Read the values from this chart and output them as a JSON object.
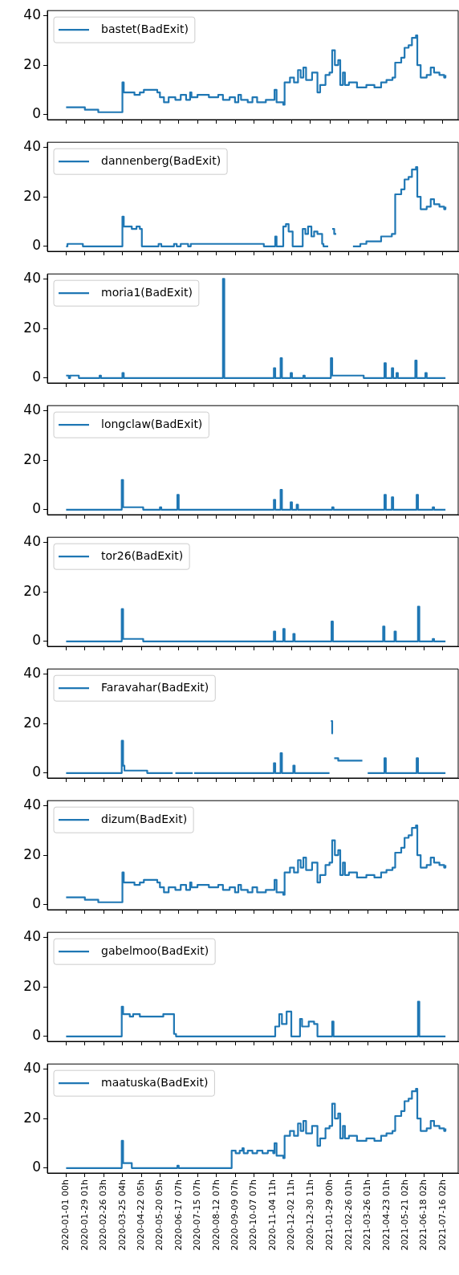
{
  "chart_data": [
    {
      "type": "step",
      "x": [
        "2020-01-01",
        "2020-01-29",
        "2020-02-18",
        "2020-03-25",
        "2020-03-27",
        "2020-04-12",
        "2020-04-20",
        "2020-04-26",
        "2020-05-16",
        "2020-05-20",
        "2020-05-26",
        "2020-06-02",
        "2020-06-12",
        "2020-06-20",
        "2020-06-28",
        "2020-07-04",
        "2020-07-06",
        "2020-07-15",
        "2020-08-01",
        "2020-08-15",
        "2020-08-22",
        "2020-09-01",
        "2020-09-09",
        "2020-09-14",
        "2020-09-18",
        "2020-09-28",
        "2020-10-05",
        "2020-10-12",
        "2020-10-25",
        "2020-11-07",
        "2020-11-10",
        "2020-11-20",
        "2020-11-22",
        "2020-11-30",
        "2020-12-06",
        "2020-12-12",
        "2020-12-16",
        "2020-12-20",
        "2020-12-24",
        "2021-01-02",
        "2021-01-10",
        "2021-01-14",
        "2021-01-22",
        "2021-01-28",
        "2021-02-01",
        "2021-02-05",
        "2021-02-10",
        "2021-02-13",
        "2021-02-17",
        "2021-02-20",
        "2021-02-26",
        "2021-03-10",
        "2021-03-24",
        "2021-04-05",
        "2021-04-15",
        "2021-04-23",
        "2021-05-02",
        "2021-05-06",
        "2021-05-15",
        "2021-05-20",
        "2021-05-26",
        "2021-05-31",
        "2021-06-06",
        "2021-06-08",
        "2021-06-13",
        "2021-06-22",
        "2021-06-28",
        "2021-07-03",
        "2021-07-11",
        "2021-07-18",
        "2021-07-20"
      ],
      "series": [
        {
          "name": "bastet(BadExit)",
          "color": "#1f77b4",
          "values": [
            3,
            2,
            1,
            13,
            9,
            8,
            9,
            10,
            9,
            7,
            5,
            7,
            6,
            8,
            6,
            9,
            7,
            8,
            7,
            8,
            6,
            7,
            5,
            8,
            6,
            5,
            7,
            5,
            6,
            10,
            5,
            4,
            13,
            15,
            13,
            18,
            15,
            19,
            14,
            17,
            9,
            12,
            16,
            17,
            26,
            20,
            22,
            12,
            17,
            12,
            13,
            11,
            12,
            11,
            13,
            14,
            15,
            21,
            23,
            27,
            28,
            31,
            32,
            20,
            15,
            16,
            19,
            17,
            16,
            15,
            16
          ]
        }
      ],
      "xlim": [
        "2019-12-04",
        "2021-08-08"
      ],
      "xticks": [
        {
          "value": "2020-01-01T00:00",
          "label": null
        },
        {
          "value": "2020-01-29T01:00",
          "label": null
        },
        {
          "value": "2020-02-26T03:00",
          "label": null
        },
        {
          "value": "2020-03-25T04:00",
          "label": null
        },
        {
          "value": "2020-04-22T05:00",
          "label": null
        },
        {
          "value": "2020-05-20T05:00",
          "label": null
        },
        {
          "value": "2020-06-17T07:00",
          "label": null
        },
        {
          "value": "2020-07-15T07:00",
          "label": null
        },
        {
          "value": "2020-08-12T07:00",
          "label": null
        },
        {
          "value": "2020-09-09T07:00",
          "label": null
        },
        {
          "value": "2020-10-07T07:00",
          "label": null
        },
        {
          "value": "2020-11-04T11:00",
          "label": null
        },
        {
          "value": "2020-12-02T11:00",
          "label": null
        },
        {
          "value": "2020-12-30T11:00",
          "label": null
        },
        {
          "value": "2021-01-29T00:00",
          "label": null
        },
        {
          "value": "2021-02-26T01:00",
          "label": null
        },
        {
          "value": "2021-03-26T01:00",
          "label": null
        },
        {
          "value": "2021-04-23T01:00",
          "label": null
        },
        {
          "value": "2021-05-21T02:00",
          "label": null
        },
        {
          "value": "2021-06-18T02:00",
          "label": null
        },
        {
          "value": "2021-07-16T02:00",
          "label": null
        }
      ],
      "ylim": [
        -2,
        42
      ],
      "yticks": [
        0,
        20,
        40
      ],
      "legend": "top left",
      "tick_labels": "y"
    },
    {
      "type": "step",
      "x": [
        "2020-01-01",
        "2020-01-03",
        "2020-01-26",
        "2020-03-25",
        "2020-03-27",
        "2020-04-08",
        "2020-04-15",
        "2020-04-20",
        "2020-04-23",
        "2020-05-18",
        "2020-05-22",
        "2020-06-10",
        "2020-06-14",
        "2020-06-20",
        "2020-07-01",
        "2020-07-05",
        "2020-10-22",
        "2020-11-08",
        "2020-11-10",
        "2020-11-20",
        "2020-11-24",
        "2020-11-28",
        "2020-12-04",
        "2020-12-19",
        "2020-12-23",
        "2020-12-27",
        "2021-01-01",
        "2021-01-05",
        "2021-01-10",
        "2021-01-17",
        "2021-01-19",
        "2021-01-26",
        "2021-01-27",
        "2021-02-01",
        "2021-02-04",
        "2021-02-07",
        "2021-02-08",
        "2021-03-04",
        "2021-03-15",
        "2021-03-24",
        "2021-04-15",
        "2021-05-01",
        "2021-05-06",
        "2021-05-15",
        "2021-05-20",
        "2021-05-26",
        "2021-05-31",
        "2021-06-06",
        "2021-06-08",
        "2021-06-13",
        "2021-06-22",
        "2021-06-28",
        "2021-07-03",
        "2021-07-11",
        "2021-07-18",
        "2021-07-20"
      ],
      "series": [
        {
          "name": "dannenberg(BadExit)",
          "color": "#1f77b4",
          "values": [
            0,
            1,
            0,
            12,
            8,
            7,
            8,
            7,
            0,
            1,
            0,
            1,
            0,
            1,
            0,
            1,
            0,
            4,
            0,
            8,
            9,
            6,
            0,
            7,
            5,
            8,
            4,
            6,
            5,
            1,
            0,
            0,
            null,
            7,
            5,
            5,
            null,
            0,
            1,
            2,
            4,
            5,
            21,
            23,
            27,
            28,
            31,
            32,
            20,
            15,
            16,
            19,
            17,
            16,
            15,
            16
          ]
        }
      ],
      "xlim": [
        "2019-12-04",
        "2021-08-08"
      ],
      "xticks": [
        {
          "value": "2020-01-01T00:00",
          "label": null
        },
        {
          "value": "2020-01-29T01:00",
          "label": null
        },
        {
          "value": "2020-02-26T03:00",
          "label": null
        },
        {
          "value": "2020-03-25T04:00",
          "label": null
        },
        {
          "value": "2020-04-22T05:00",
          "label": null
        },
        {
          "value": "2020-05-20T05:00",
          "label": null
        },
        {
          "value": "2020-06-17T07:00",
          "label": null
        },
        {
          "value": "2020-07-15T07:00",
          "label": null
        },
        {
          "value": "2020-08-12T07:00",
          "label": null
        },
        {
          "value": "2020-09-09T07:00",
          "label": null
        },
        {
          "value": "2020-10-07T07:00",
          "label": null
        },
        {
          "value": "2020-11-04T11:00",
          "label": null
        },
        {
          "value": "2020-12-02T11:00",
          "label": null
        },
        {
          "value": "2020-12-30T11:00",
          "label": null
        },
        {
          "value": "2021-01-29T00:00",
          "label": null
        },
        {
          "value": "2021-02-26T01:00",
          "label": null
        },
        {
          "value": "2021-03-26T01:00",
          "label": null
        },
        {
          "value": "2021-04-23T01:00",
          "label": null
        },
        {
          "value": "2021-05-21T02:00",
          "label": null
        },
        {
          "value": "2021-06-18T02:00",
          "label": null
        },
        {
          "value": "2021-07-16T02:00",
          "label": null
        }
      ],
      "ylim": [
        -2,
        42
      ],
      "yticks": [
        0,
        20,
        40
      ],
      "legend": "top left",
      "tick_labels": "y"
    },
    {
      "type": "step",
      "x": [
        "2020-01-01",
        "2020-01-05",
        "2020-01-07",
        "2020-01-20",
        "2020-02-20",
        "2020-02-22",
        "2020-03-25",
        "2020-03-27",
        "2020-08-22",
        "2020-08-24",
        "2020-11-06",
        "2020-11-08",
        "2020-11-16",
        "2020-11-18",
        "2020-12-01",
        "2020-12-03",
        "2020-12-20",
        "2020-12-22",
        "2021-01-30",
        "2021-02-01",
        "2021-02-04",
        "2021-03-20",
        "2021-04-20",
        "2021-04-22",
        "2021-05-01",
        "2021-05-03",
        "2021-05-08",
        "2021-05-10",
        "2021-06-05",
        "2021-06-07",
        "2021-06-20",
        "2021-06-22",
        "2021-07-20"
      ],
      "series": [
        {
          "name": "moria1(BadExit)",
          "color": "#1f77b4",
          "values": [
            1,
            0,
            1,
            0,
            1,
            0,
            2,
            0,
            40,
            0,
            4,
            0,
            8,
            0,
            2,
            0,
            1,
            0,
            8,
            1,
            1,
            0,
            6,
            0,
            4,
            0,
            2,
            0,
            7,
            0,
            2,
            0,
            0
          ]
        }
      ],
      "xlim": [
        "2019-12-04",
        "2021-08-08"
      ],
      "xticks": [
        {
          "value": "2020-01-01T00:00",
          "label": null
        },
        {
          "value": "2020-01-29T01:00",
          "label": null
        },
        {
          "value": "2020-02-26T03:00",
          "label": null
        },
        {
          "value": "2020-03-25T04:00",
          "label": null
        },
        {
          "value": "2020-04-22T05:00",
          "label": null
        },
        {
          "value": "2020-05-20T05:00",
          "label": null
        },
        {
          "value": "2020-06-17T07:00",
          "label": null
        },
        {
          "value": "2020-07-15T07:00",
          "label": null
        },
        {
          "value": "2020-08-12T07:00",
          "label": null
        },
        {
          "value": "2020-09-09T07:00",
          "label": null
        },
        {
          "value": "2020-10-07T07:00",
          "label": null
        },
        {
          "value": "2020-11-04T11:00",
          "label": null
        },
        {
          "value": "2020-12-02T11:00",
          "label": null
        },
        {
          "value": "2020-12-30T11:00",
          "label": null
        },
        {
          "value": "2021-01-29T00:00",
          "label": null
        },
        {
          "value": "2021-02-26T01:00",
          "label": null
        },
        {
          "value": "2021-03-26T01:00",
          "label": null
        },
        {
          "value": "2021-04-23T01:00",
          "label": null
        },
        {
          "value": "2021-05-21T02:00",
          "label": null
        },
        {
          "value": "2021-06-18T02:00",
          "label": null
        },
        {
          "value": "2021-07-16T02:00",
          "label": null
        }
      ],
      "ylim": [
        -2,
        42
      ],
      "yticks": [
        0,
        20,
        40
      ],
      "legend": "top left",
      "tick_labels": "y"
    },
    {
      "type": "step",
      "x": [
        "2020-01-01",
        "2020-03-24",
        "2020-03-26",
        "2020-04-25",
        "2020-05-20",
        "2020-05-22",
        "2020-06-15",
        "2020-06-17",
        "2020-11-06",
        "2020-11-08",
        "2020-11-16",
        "2020-11-18",
        "2020-12-01",
        "2020-12-03",
        "2020-12-10",
        "2020-12-12",
        "2021-02-01",
        "2021-02-03",
        "2021-04-20",
        "2021-04-22",
        "2021-05-01",
        "2021-05-03",
        "2021-06-07",
        "2021-06-09",
        "2021-07-01",
        "2021-07-03",
        "2021-07-20"
      ],
      "series": [
        {
          "name": "longclaw(BadExit)",
          "color": "#1f77b4",
          "values": [
            0,
            12,
            1,
            0,
            1,
            0,
            6,
            0,
            4,
            0,
            8,
            0,
            3,
            0,
            2,
            0,
            1,
            0,
            6,
            0,
            5,
            0,
            6,
            0,
            1,
            0,
            0
          ]
        }
      ],
      "xlim": [
        "2019-12-04",
        "2021-08-08"
      ],
      "xticks": [
        {
          "value": "2020-01-01T00:00",
          "label": null
        },
        {
          "value": "2020-01-29T01:00",
          "label": null
        },
        {
          "value": "2020-02-26T03:00",
          "label": null
        },
        {
          "value": "2020-03-25T04:00",
          "label": null
        },
        {
          "value": "2020-04-22T05:00",
          "label": null
        },
        {
          "value": "2020-05-20T05:00",
          "label": null
        },
        {
          "value": "2020-06-17T07:00",
          "label": null
        },
        {
          "value": "2020-07-15T07:00",
          "label": null
        },
        {
          "value": "2020-08-12T07:00",
          "label": null
        },
        {
          "value": "2020-09-09T07:00",
          "label": null
        },
        {
          "value": "2020-10-07T07:00",
          "label": null
        },
        {
          "value": "2020-11-04T11:00",
          "label": null
        },
        {
          "value": "2020-12-02T11:00",
          "label": null
        },
        {
          "value": "2020-12-30T11:00",
          "label": null
        },
        {
          "value": "2021-01-29T00:00",
          "label": null
        },
        {
          "value": "2021-02-26T01:00",
          "label": null
        },
        {
          "value": "2021-03-26T01:00",
          "label": null
        },
        {
          "value": "2021-04-23T01:00",
          "label": null
        },
        {
          "value": "2021-05-21T02:00",
          "label": null
        },
        {
          "value": "2021-06-18T02:00",
          "label": null
        },
        {
          "value": "2021-07-16T02:00",
          "label": null
        }
      ],
      "ylim": [
        -2,
        42
      ],
      "yticks": [
        0,
        20,
        40
      ],
      "legend": "top left",
      "tick_labels": "y"
    },
    {
      "type": "step",
      "x": [
        "2020-01-01",
        "2020-03-24",
        "2020-03-26",
        "2020-04-25",
        "2020-11-06",
        "2020-11-08",
        "2020-11-20",
        "2020-11-22",
        "2020-12-05",
        "2020-12-07",
        "2021-01-31",
        "2021-02-02",
        "2021-04-18",
        "2021-04-20",
        "2021-05-05",
        "2021-05-07",
        "2021-06-09",
        "2021-06-11",
        "2021-07-01",
        "2021-07-03",
        "2021-07-20"
      ],
      "series": [
        {
          "name": "tor26(BadExit)",
          "color": "#1f77b4",
          "values": [
            0,
            13,
            1,
            0,
            4,
            0,
            5,
            0,
            3,
            0,
            8,
            0,
            6,
            0,
            4,
            0,
            14,
            0,
            1,
            0,
            0
          ]
        }
      ],
      "xlim": [
        "2019-12-04",
        "2021-08-08"
      ],
      "xticks": [
        {
          "value": "2020-01-01T00:00",
          "label": null
        },
        {
          "value": "2020-01-29T01:00",
          "label": null
        },
        {
          "value": "2020-02-26T03:00",
          "label": null
        },
        {
          "value": "2020-03-25T04:00",
          "label": null
        },
        {
          "value": "2020-04-22T05:00",
          "label": null
        },
        {
          "value": "2020-05-20T05:00",
          "label": null
        },
        {
          "value": "2020-06-17T07:00",
          "label": null
        },
        {
          "value": "2020-07-15T07:00",
          "label": null
        },
        {
          "value": "2020-08-12T07:00",
          "label": null
        },
        {
          "value": "2020-09-09T07:00",
          "label": null
        },
        {
          "value": "2020-10-07T07:00",
          "label": null
        },
        {
          "value": "2020-11-04T11:00",
          "label": null
        },
        {
          "value": "2020-12-02T11:00",
          "label": null
        },
        {
          "value": "2020-12-30T11:00",
          "label": null
        },
        {
          "value": "2021-01-29T00:00",
          "label": null
        },
        {
          "value": "2021-02-26T01:00",
          "label": null
        },
        {
          "value": "2021-03-26T01:00",
          "label": null
        },
        {
          "value": "2021-04-23T01:00",
          "label": null
        },
        {
          "value": "2021-05-21T02:00",
          "label": null
        },
        {
          "value": "2021-06-18T02:00",
          "label": null
        },
        {
          "value": "2021-07-16T02:00",
          "label": null
        }
      ],
      "ylim": [
        -2,
        42
      ],
      "yticks": [
        0,
        20,
        40
      ],
      "legend": "top left",
      "tick_labels": "y"
    },
    {
      "type": "step",
      "x": [
        "2020-01-01",
        "2020-03-24",
        "2020-03-26",
        "2020-03-28",
        "2020-05-01",
        "2020-06-08",
        "2020-06-09",
        "2020-06-12",
        "2020-07-08",
        "2020-07-09",
        "2020-07-10",
        "2020-11-06",
        "2020-11-08",
        "2020-11-16",
        "2020-11-18",
        "2020-12-05",
        "2020-12-07",
        "2021-01-28",
        "2021-01-29",
        "2021-01-30",
        "2021-02-01",
        "2021-02-02",
        "2021-02-03",
        "2021-02-04",
        "2021-02-10",
        "2021-03-18",
        "2021-03-19",
        "2021-03-26",
        "2021-04-20",
        "2021-04-22",
        "2021-06-07",
        "2021-06-09",
        "2021-07-20"
      ],
      "series": [
        {
          "name": "Faravahar(BadExit)",
          "color": "#1f77b4",
          "values": [
            0,
            13,
            3,
            1,
            0,
            0,
            null,
            0,
            0,
            null,
            0,
            4,
            0,
            8,
            0,
            3,
            0,
            0,
            null,
            21,
            16,
            16,
            null,
            6,
            5,
            5,
            null,
            0,
            6,
            0,
            6,
            0,
            0
          ]
        }
      ],
      "xlim": [
        "2019-12-04",
        "2021-08-08"
      ],
      "xticks": [
        {
          "value": "2020-01-01T00:00",
          "label": null
        },
        {
          "value": "2020-01-29T01:00",
          "label": null
        },
        {
          "value": "2020-02-26T03:00",
          "label": null
        },
        {
          "value": "2020-03-25T04:00",
          "label": null
        },
        {
          "value": "2020-04-22T05:00",
          "label": null
        },
        {
          "value": "2020-05-20T05:00",
          "label": null
        },
        {
          "value": "2020-06-17T07:00",
          "label": null
        },
        {
          "value": "2020-07-15T07:00",
          "label": null
        },
        {
          "value": "2020-08-12T07:00",
          "label": null
        },
        {
          "value": "2020-09-09T07:00",
          "label": null
        },
        {
          "value": "2020-10-07T07:00",
          "label": null
        },
        {
          "value": "2020-11-04T11:00",
          "label": null
        },
        {
          "value": "2020-12-02T11:00",
          "label": null
        },
        {
          "value": "2020-12-30T11:00",
          "label": null
        },
        {
          "value": "2021-01-29T00:00",
          "label": null
        },
        {
          "value": "2021-02-26T01:00",
          "label": null
        },
        {
          "value": "2021-03-26T01:00",
          "label": null
        },
        {
          "value": "2021-04-23T01:00",
          "label": null
        },
        {
          "value": "2021-05-21T02:00",
          "label": null
        },
        {
          "value": "2021-06-18T02:00",
          "label": null
        },
        {
          "value": "2021-07-16T02:00",
          "label": null
        }
      ],
      "ylim": [
        -2,
        42
      ],
      "yticks": [
        0,
        20,
        40
      ],
      "legend": "top left",
      "tick_labels": "y"
    },
    {
      "type": "step",
      "x": [
        "2020-01-01",
        "2020-01-29",
        "2020-02-18",
        "2020-03-25",
        "2020-03-27",
        "2020-04-12",
        "2020-04-20",
        "2020-04-26",
        "2020-05-16",
        "2020-05-20",
        "2020-05-26",
        "2020-06-02",
        "2020-06-12",
        "2020-06-20",
        "2020-06-28",
        "2020-07-04",
        "2020-07-06",
        "2020-07-15",
        "2020-08-01",
        "2020-08-15",
        "2020-08-22",
        "2020-09-01",
        "2020-09-09",
        "2020-09-14",
        "2020-09-18",
        "2020-09-28",
        "2020-10-05",
        "2020-10-12",
        "2020-10-25",
        "2020-11-07",
        "2020-11-10",
        "2020-11-20",
        "2020-11-22",
        "2020-11-30",
        "2020-12-06",
        "2020-12-12",
        "2020-12-16",
        "2020-12-20",
        "2020-12-24",
        "2021-01-02",
        "2021-01-10",
        "2021-01-14",
        "2021-01-22",
        "2021-01-28",
        "2021-02-01",
        "2021-02-05",
        "2021-02-10",
        "2021-02-13",
        "2021-02-17",
        "2021-02-20",
        "2021-02-26",
        "2021-03-10",
        "2021-03-24",
        "2021-04-05",
        "2021-04-15",
        "2021-04-23",
        "2021-05-02",
        "2021-05-06",
        "2021-05-15",
        "2021-05-20",
        "2021-05-26",
        "2021-05-31",
        "2021-06-06",
        "2021-06-08",
        "2021-06-13",
        "2021-06-22",
        "2021-06-28",
        "2021-07-03",
        "2021-07-11",
        "2021-07-18",
        "2021-07-20"
      ],
      "series": [
        {
          "name": "dizum(BadExit)",
          "color": "#1f77b4",
          "values": [
            3,
            2,
            1,
            13,
            9,
            8,
            9,
            10,
            9,
            7,
            5,
            7,
            6,
            8,
            6,
            9,
            7,
            8,
            7,
            8,
            6,
            7,
            5,
            8,
            6,
            5,
            7,
            5,
            6,
            10,
            5,
            4,
            13,
            15,
            13,
            18,
            15,
            19,
            14,
            17,
            9,
            12,
            16,
            17,
            26,
            20,
            22,
            12,
            17,
            12,
            13,
            11,
            12,
            11,
            13,
            14,
            15,
            21,
            23,
            27,
            28,
            31,
            32,
            20,
            15,
            16,
            19,
            17,
            16,
            15,
            16
          ]
        }
      ],
      "xlim": [
        "2019-12-04",
        "2021-08-08"
      ],
      "xticks": [
        {
          "value": "2020-01-01T00:00",
          "label": null
        },
        {
          "value": "2020-01-29T01:00",
          "label": null
        },
        {
          "value": "2020-02-26T03:00",
          "label": null
        },
        {
          "value": "2020-03-25T04:00",
          "label": null
        },
        {
          "value": "2020-04-22T05:00",
          "label": null
        },
        {
          "value": "2020-05-20T05:00",
          "label": null
        },
        {
          "value": "2020-06-17T07:00",
          "label": null
        },
        {
          "value": "2020-07-15T07:00",
          "label": null
        },
        {
          "value": "2020-08-12T07:00",
          "label": null
        },
        {
          "value": "2020-09-09T07:00",
          "label": null
        },
        {
          "value": "2020-10-07T07:00",
          "label": null
        },
        {
          "value": "2020-11-04T11:00",
          "label": null
        },
        {
          "value": "2020-12-02T11:00",
          "label": null
        },
        {
          "value": "2020-12-30T11:00",
          "label": null
        },
        {
          "value": "2021-01-29T00:00",
          "label": null
        },
        {
          "value": "2021-02-26T01:00",
          "label": null
        },
        {
          "value": "2021-03-26T01:00",
          "label": null
        },
        {
          "value": "2021-04-23T01:00",
          "label": null
        },
        {
          "value": "2021-05-21T02:00",
          "label": null
        },
        {
          "value": "2021-06-18T02:00",
          "label": null
        },
        {
          "value": "2021-07-16T02:00",
          "label": null
        }
      ],
      "ylim": [
        -2,
        42
      ],
      "yticks": [
        0,
        20,
        40
      ],
      "legend": "top left",
      "tick_labels": "y"
    },
    {
      "type": "step",
      "x": [
        "2020-01-01",
        "2020-03-24",
        "2020-03-26",
        "2020-04-05",
        "2020-04-10",
        "2020-04-20",
        "2020-05-25",
        "2020-06-10",
        "2020-06-13",
        "2020-06-16",
        "2020-11-06",
        "2020-11-08",
        "2020-11-14",
        "2020-11-18",
        "2020-11-25",
        "2020-12-02",
        "2020-12-15",
        "2020-12-18",
        "2020-12-28",
        "2021-01-05",
        "2021-01-10",
        "2021-02-01",
        "2021-02-03",
        "2021-06-09",
        "2021-06-11",
        "2021-07-20"
      ],
      "series": [
        {
          "name": "gabelmoo(BadExit)",
          "color": "#1f77b4",
          "values": [
            0,
            12,
            9,
            8,
            9,
            8,
            9,
            1,
            0,
            0,
            0,
            4,
            9,
            5,
            10,
            0,
            7,
            4,
            6,
            5,
            0,
            6,
            0,
            14,
            0,
            0
          ]
        }
      ],
      "xlim": [
        "2019-12-04",
        "2021-08-08"
      ],
      "xticks": [
        {
          "value": "2020-01-01T00:00",
          "label": null
        },
        {
          "value": "2020-01-29T01:00",
          "label": null
        },
        {
          "value": "2020-02-26T03:00",
          "label": null
        },
        {
          "value": "2020-03-25T04:00",
          "label": null
        },
        {
          "value": "2020-04-22T05:00",
          "label": null
        },
        {
          "value": "2020-05-20T05:00",
          "label": null
        },
        {
          "value": "2020-06-17T07:00",
          "label": null
        },
        {
          "value": "2020-07-15T07:00",
          "label": null
        },
        {
          "value": "2020-08-12T07:00",
          "label": null
        },
        {
          "value": "2020-09-09T07:00",
          "label": null
        },
        {
          "value": "2020-10-07T07:00",
          "label": null
        },
        {
          "value": "2020-11-04T11:00",
          "label": null
        },
        {
          "value": "2020-12-02T11:00",
          "label": null
        },
        {
          "value": "2020-12-30T11:00",
          "label": null
        },
        {
          "value": "2021-01-29T00:00",
          "label": null
        },
        {
          "value": "2021-02-26T01:00",
          "label": null
        },
        {
          "value": "2021-03-26T01:00",
          "label": null
        },
        {
          "value": "2021-04-23T01:00",
          "label": null
        },
        {
          "value": "2021-05-21T02:00",
          "label": null
        },
        {
          "value": "2021-06-18T02:00",
          "label": null
        },
        {
          "value": "2021-07-16T02:00",
          "label": null
        }
      ],
      "ylim": [
        -2,
        42
      ],
      "yticks": [
        0,
        20,
        40
      ],
      "legend": "top left",
      "tick_labels": "y"
    },
    {
      "type": "step",
      "x": [
        "2020-01-01",
        "2020-03-24",
        "2020-03-26",
        "2020-04-08",
        "2020-06-15",
        "2020-06-17",
        "2020-09-04",
        "2020-09-10",
        "2020-09-16",
        "2020-09-20",
        "2020-09-22",
        "2020-09-28",
        "2020-10-05",
        "2020-10-12",
        "2020-10-20",
        "2020-10-28",
        "2020-11-05",
        "2020-11-07",
        "2020-11-10",
        "2020-11-20",
        "2020-11-22",
        "2020-11-30",
        "2020-12-06",
        "2020-12-12",
        "2020-12-16",
        "2020-12-20",
        "2020-12-24",
        "2021-01-02",
        "2021-01-10",
        "2021-01-14",
        "2021-01-22",
        "2021-01-28",
        "2021-02-01",
        "2021-02-05",
        "2021-02-10",
        "2021-02-13",
        "2021-02-17",
        "2021-02-20",
        "2021-02-26",
        "2021-03-10",
        "2021-03-24",
        "2021-04-05",
        "2021-04-15",
        "2021-04-23",
        "2021-05-02",
        "2021-05-06",
        "2021-05-15",
        "2021-05-20",
        "2021-05-26",
        "2021-05-31",
        "2021-06-06",
        "2021-06-08",
        "2021-06-13",
        "2021-06-22",
        "2021-06-28",
        "2021-07-03",
        "2021-07-11",
        "2021-07-18",
        "2021-07-20"
      ],
      "series": [
        {
          "name": "maatuska(BadExit)",
          "color": "#1f77b4",
          "values": [
            0,
            11,
            2,
            0,
            1,
            0,
            7,
            6,
            7,
            8,
            6,
            7,
            6,
            7,
            6,
            7,
            6,
            10,
            5,
            4,
            13,
            15,
            13,
            18,
            15,
            19,
            14,
            17,
            9,
            12,
            16,
            17,
            26,
            20,
            22,
            12,
            17,
            12,
            13,
            11,
            12,
            11,
            13,
            14,
            15,
            21,
            23,
            27,
            28,
            31,
            32,
            20,
            15,
            16,
            19,
            17,
            16,
            15,
            16
          ]
        }
      ],
      "xlim": [
        "2019-12-04",
        "2021-08-08"
      ],
      "xticks": [
        {
          "value": "2020-01-01T00:00",
          "label": "2020-01-01 00h"
        },
        {
          "value": "2020-01-29T01:00",
          "label": "2020-01-29 01h"
        },
        {
          "value": "2020-02-26T03:00",
          "label": "2020-02-26 03h"
        },
        {
          "value": "2020-03-25T04:00",
          "label": "2020-03-25 04h"
        },
        {
          "value": "2020-04-22T05:00",
          "label": "2020-04-22 05h"
        },
        {
          "value": "2020-05-20T05:00",
          "label": "2020-05-20 05h"
        },
        {
          "value": "2020-06-17T07:00",
          "label": "2020-06-17 07h"
        },
        {
          "value": "2020-07-15T07:00",
          "label": "2020-07-15 07h"
        },
        {
          "value": "2020-08-12T07:00",
          "label": "2020-08-12 07h"
        },
        {
          "value": "2020-09-09T07:00",
          "label": "2020-09-09 07h"
        },
        {
          "value": "2020-10-07T07:00",
          "label": "2020-10-07 07h"
        },
        {
          "value": "2020-11-04T11:00",
          "label": "2020-11-04 11h"
        },
        {
          "value": "2020-12-02T11:00",
          "label": "2020-12-02 11h"
        },
        {
          "value": "2020-12-30T11:00",
          "label": "2020-12-30 11h"
        },
        {
          "value": "2021-01-29T00:00",
          "label": "2021-01-29 00h"
        },
        {
          "value": "2021-02-26T01:00",
          "label": "2021-02-26 01h"
        },
        {
          "value": "2021-03-26T01:00",
          "label": "2021-03-26 01h"
        },
        {
          "value": "2021-04-23T01:00",
          "label": "2021-04-23 01h"
        },
        {
          "value": "2021-05-21T02:00",
          "label": "2021-05-21 02h"
        },
        {
          "value": "2021-06-18T02:00",
          "label": "2021-06-18 02h"
        },
        {
          "value": "2021-07-16T02:00",
          "label": "2021-07-16 02h"
        }
      ],
      "ylim": [
        -2,
        42
      ],
      "yticks": [
        0,
        20,
        40
      ],
      "legend": "top left"
    }
  ]
}
